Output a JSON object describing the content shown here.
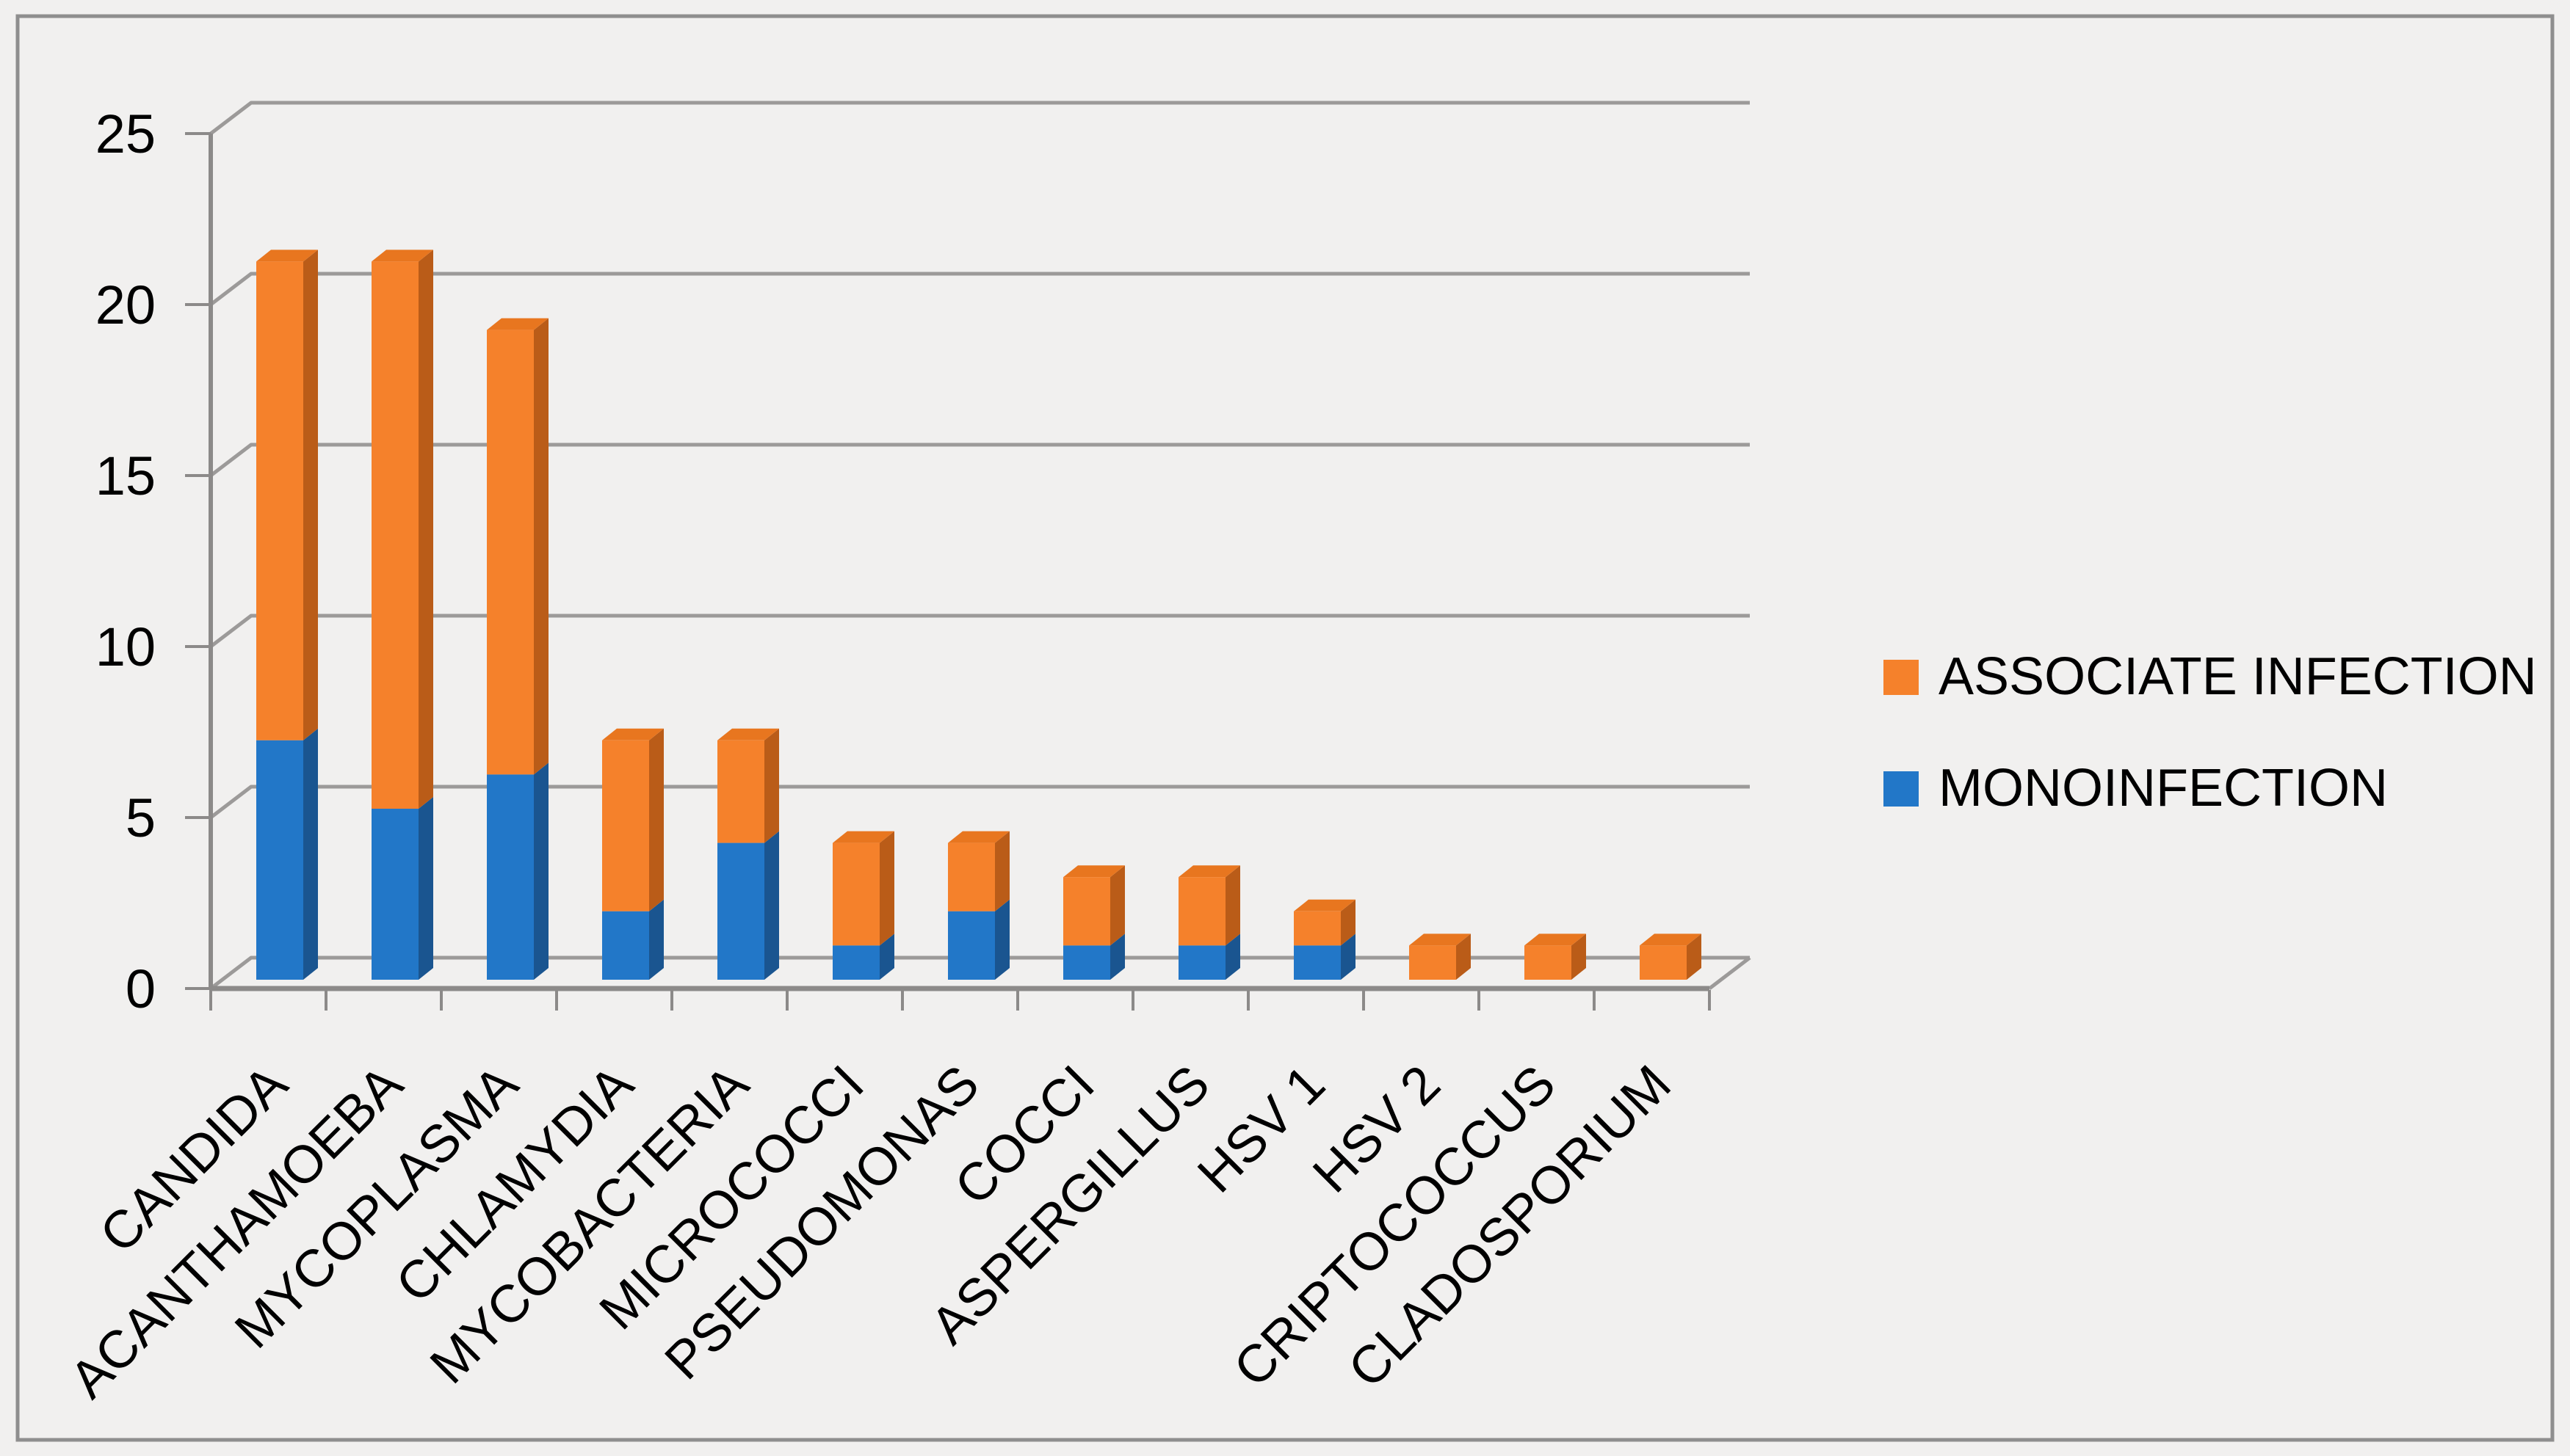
{
  "frame": {
    "background": "#F1F0EF",
    "border_color": "#8E8E8E",
    "grid_color": "#9C9A99",
    "axis_color": "#8C8A89",
    "text_color": "#000000"
  },
  "chart_data": {
    "type": "bar",
    "stacked": true,
    "style": "3d",
    "title": "",
    "xlabel": "",
    "ylabel": "",
    "grid": true,
    "ylim": [
      0,
      25
    ],
    "ytick_step": 5,
    "yticks": [
      0,
      5,
      10,
      15,
      20,
      25
    ],
    "categories": [
      "CANDIDA",
      "ACANTHAMOEBA",
      "MYCOPLASMA",
      "CHLAMYDIA",
      "MYCOBACTERIA",
      "MICROCOCCI",
      "PSEUDOMONAS",
      "COCCI",
      "ASPERGILLUS",
      "HSV 1",
      "HSV 2",
      "CRIPTOCOCCUS",
      "CLADOSPORIUM"
    ],
    "series": [
      {
        "name": "MONOINFECTION",
        "color": "#2277C8",
        "color_side": "#1A5590",
        "color_top": "#1E63A9",
        "values": [
          7,
          5,
          6,
          2,
          4,
          1,
          2,
          1,
          1,
          1,
          0,
          0,
          0
        ]
      },
      {
        "name": "ASSOCIATE INFECTION",
        "color": "#F5812B",
        "color_side": "#BA5C18",
        "color_top": "#E8761F",
        "values": [
          14,
          16,
          13,
          5,
          3,
          3,
          2,
          2,
          2,
          1,
          1,
          1,
          1
        ]
      }
    ],
    "totals": [
      21,
      21,
      19,
      7,
      7,
      4,
      4,
      3,
      3,
      2,
      1,
      1,
      1
    ],
    "legend_position": "right-middle",
    "legend": [
      {
        "label": "ASSOCIATE INFECTION",
        "color": "#F5812B"
      },
      {
        "label": "MONOINFECTION",
        "color": "#2277C8"
      }
    ]
  }
}
